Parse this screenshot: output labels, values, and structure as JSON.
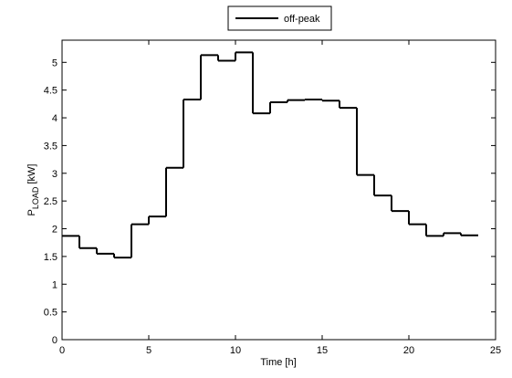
{
  "chart_data": {
    "type": "stairs",
    "xlabel": "Time [h]",
    "ylabel": {
      "main": "P",
      "sub": "LOAD",
      "unit": " [kW]"
    },
    "x": [
      0,
      1,
      2,
      3,
      4,
      5,
      6,
      7,
      8,
      9,
      10,
      11,
      12,
      13,
      14,
      15,
      16,
      17,
      18,
      19,
      20,
      21,
      22,
      23,
      24
    ],
    "series": [
      {
        "name": "off-peak",
        "color": "#000000",
        "values": [
          1.87,
          1.65,
          1.55,
          1.48,
          2.08,
          2.22,
          3.1,
          4.33,
          5.13,
          5.03,
          5.18,
          4.08,
          4.28,
          4.32,
          4.33,
          4.31,
          4.18,
          2.97,
          2.6,
          2.32,
          2.08,
          1.87,
          1.92,
          1.88,
          1.88
        ]
      }
    ],
    "xlim": [
      0,
      25
    ],
    "xticks": [
      0,
      5,
      10,
      15,
      20,
      25
    ],
    "ylim": [
      0,
      5.4
    ],
    "yticks": [
      0,
      0.5,
      1,
      1.5,
      2,
      2.5,
      3,
      3.5,
      4,
      4.5,
      5
    ],
    "legend": "top",
    "grid": false
  }
}
